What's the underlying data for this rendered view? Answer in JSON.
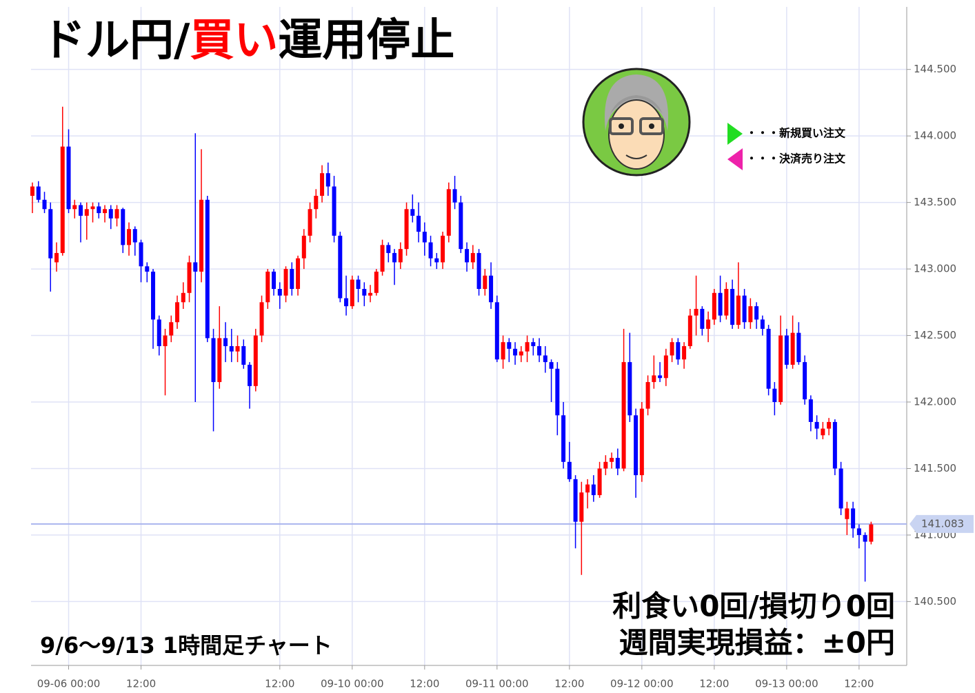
{
  "title_parts": [
    "ドル円/",
    "買い",
    "運用停止"
  ],
  "legend": [
    "・・・新規買い注文",
    "・・・決済売り注文"
  ],
  "period_note": "9/6〜9/13  1時間足チャート",
  "result_lines": [
    "利食い0回/損切り0回",
    "週間実現損益：±0円"
  ],
  "chart_data": {
    "type": "candlestick",
    "up_color": "#ff0000",
    "down_color": "#0000ff",
    "grid": true,
    "ylim": [
      140.02,
      144.97
    ],
    "xlim": [
      -0.23,
      144.9
    ],
    "yticks": [
      {
        "value": 140.5,
        "label": "140.500"
      },
      {
        "value": 141,
        "label": "141.000"
      },
      {
        "value": 141.5,
        "label": "141.500"
      },
      {
        "value": 142,
        "label": "142.000"
      },
      {
        "value": 142.5,
        "label": "142.500"
      },
      {
        "value": 143,
        "label": "143.000"
      },
      {
        "value": 143.5,
        "label": "143.500"
      },
      {
        "value": 144,
        "label": "144.000"
      },
      {
        "value": 144.5,
        "label": "144.500"
      }
    ],
    "xticks": [
      {
        "value": 6,
        "label": "09-06 00:00"
      },
      {
        "value": 18,
        "label": "12:00"
      },
      {
        "value": 41,
        "label": "12:00"
      },
      {
        "value": 53,
        "label": "09-10 00:00"
      },
      {
        "value": 65,
        "label": "12:00"
      },
      {
        "value": 77,
        "label": "09-11 00:00"
      },
      {
        "value": 89,
        "label": "12:00"
      },
      {
        "value": 101,
        "label": "09-12 00:00"
      },
      {
        "value": 113,
        "label": "12:00"
      },
      {
        "value": 125,
        "label": "09-13 00:00"
      },
      {
        "value": 137,
        "label": "12:00"
      }
    ],
    "last_price": {
      "value": 141.083,
      "label": "141.083"
    },
    "open": [
      143.55,
      143.62,
      143.52,
      143.45,
      143.05,
      143.12,
      143.92,
      143.45,
      143.48,
      143.4,
      143.45,
      143.47,
      143.42,
      143.45,
      143.38,
      143.45,
      143.18,
      143.3,
      143.2,
      143.02,
      142.98,
      142.62,
      142.42,
      142.5,
      142.6,
      142.75,
      142.82,
      143.05,
      142.98,
      143.52,
      142.48,
      142.15,
      142.48,
      142.42,
      142.38,
      142.42,
      142.28,
      142.12,
      142.5,
      142.75,
      142.98,
      142.85,
      142.8,
      143.0,
      142.85,
      143.08,
      143.25,
      143.45,
      143.55,
      143.72,
      143.62,
      143.25,
      142.78,
      142.72,
      142.92,
      142.85,
      142.8,
      142.82,
      142.98,
      143.18,
      143.12,
      143.05,
      143.15,
      143.45,
      143.4,
      143.28,
      143.2,
      143.08,
      143.05,
      143.25,
      143.6,
      143.5,
      143.15,
      143.05,
      143.12,
      142.85,
      142.95,
      142.75,
      142.32,
      142.45,
      142.4,
      142.35,
      142.38,
      142.45,
      142.42,
      142.35,
      142.3,
      142.25,
      141.9,
      141.55,
      141.42,
      141.1,
      141.32,
      141.38,
      141.3,
      141.5,
      141.55,
      141.58,
      141.5,
      142.3,
      141.9,
      141.45,
      141.95,
      142.15,
      142.2,
      142.18,
      142.35,
      142.45,
      142.32,
      142.42,
      142.65,
      142.7,
      142.55,
      142.62,
      142.82,
      142.65,
      142.85,
      142.58,
      142.8,
      142.6,
      142.72,
      142.62,
      142.55,
      142.1,
      142.0,
      142.5,
      142.28,
      142.52,
      142.3,
      142.02,
      141.85,
      141.75,
      141.8,
      141.85,
      141.5,
      141.12,
      141.2,
      141.05,
      141.0,
      140.95
    ],
    "high": [
      143.65,
      143.66,
      143.58,
      143.5,
      143.2,
      144.22,
      144.05,
      143.52,
      143.5,
      143.5,
      143.5,
      143.5,
      143.48,
      143.48,
      143.48,
      143.46,
      143.35,
      143.32,
      143.22,
      143.05,
      143.0,
      142.65,
      142.55,
      142.65,
      142.8,
      142.9,
      143.1,
      144.02,
      143.9,
      143.55,
      142.55,
      142.72,
      142.6,
      142.55,
      142.5,
      142.47,
      142.3,
      142.55,
      142.8,
      143.0,
      143.0,
      142.9,
      143.02,
      143.05,
      143.1,
      143.3,
      143.5,
      143.6,
      143.78,
      143.8,
      143.7,
      143.28,
      142.95,
      142.95,
      142.95,
      142.9,
      142.88,
      143.0,
      143.22,
      143.2,
      143.15,
      143.2,
      143.5,
      143.56,
      143.5,
      143.35,
      143.25,
      143.12,
      143.28,
      143.65,
      143.7,
      143.55,
      143.2,
      143.18,
      143.15,
      143.0,
      143.05,
      142.8,
      142.5,
      142.48,
      142.45,
      142.42,
      142.5,
      142.48,
      142.48,
      142.42,
      142.32,
      142.3,
      142.0,
      141.7,
      141.45,
      141.4,
      141.42,
      141.45,
      141.55,
      141.6,
      141.62,
      141.65,
      142.55,
      142.52,
      141.95,
      142.0,
      142.2,
      142.35,
      142.3,
      142.4,
      142.48,
      142.48,
      142.45,
      142.7,
      142.95,
      142.72,
      142.68,
      142.85,
      142.95,
      142.9,
      142.92,
      143.05,
      142.85,
      142.78,
      142.75,
      142.65,
      142.58,
      142.15,
      142.65,
      142.55,
      142.65,
      142.6,
      142.35,
      142.05,
      141.9,
      141.85,
      141.88,
      141.87,
      141.55,
      141.25,
      141.25,
      141.08,
      141.02,
      141.1
    ],
    "low": [
      143.42,
      143.5,
      143.42,
      142.83,
      142.98,
      143.1,
      143.42,
      143.38,
      143.2,
      143.22,
      143.35,
      143.38,
      143.35,
      143.3,
      143.32,
      143.12,
      143.1,
      143.1,
      142.9,
      142.9,
      142.4,
      142.35,
      142.05,
      142.45,
      142.55,
      142.7,
      142.75,
      142.0,
      142.9,
      142.45,
      141.78,
      142.1,
      142.3,
      142.3,
      142.3,
      142.25,
      141.95,
      142.08,
      142.45,
      142.7,
      142.8,
      142.7,
      142.75,
      142.8,
      142.8,
      143.0,
      143.2,
      143.38,
      143.5,
      143.55,
      143.2,
      142.75,
      142.65,
      142.7,
      142.75,
      142.72,
      142.75,
      142.8,
      142.95,
      143.05,
      142.88,
      143.0,
      143.1,
      143.35,
      143.2,
      143.1,
      143.02,
      143.0,
      143.0,
      143.2,
      143.45,
      143.12,
      142.98,
      143.0,
      142.8,
      142.8,
      142.7,
      142.3,
      142.25,
      142.3,
      142.28,
      142.3,
      142.3,
      142.35,
      142.3,
      142.22,
      142.0,
      141.75,
      141.5,
      141.4,
      140.9,
      140.7,
      141.2,
      141.25,
      141.28,
      141.45,
      141.5,
      141.45,
      141.48,
      141.85,
      141.28,
      141.4,
      141.9,
      142.1,
      142.15,
      142.12,
      142.3,
      142.28,
      142.25,
      142.4,
      142.5,
      142.5,
      142.45,
      142.58,
      142.6,
      142.62,
      142.55,
      142.55,
      142.55,
      142.55,
      142.55,
      142.5,
      142.05,
      141.9,
      141.98,
      142.25,
      142.25,
      142.28,
      141.98,
      141.78,
      141.72,
      141.72,
      141.75,
      141.45,
      141.15,
      141.0,
      140.98,
      140.9,
      140.65,
      140.93
    ],
    "close": [
      143.62,
      143.52,
      143.45,
      143.08,
      143.12,
      143.92,
      143.45,
      143.48,
      143.4,
      143.45,
      143.47,
      143.42,
      143.45,
      143.38,
      143.45,
      143.18,
      143.3,
      143.2,
      143.02,
      142.98,
      142.62,
      142.42,
      142.5,
      142.6,
      142.75,
      142.82,
      143.05,
      142.98,
      143.52,
      142.48,
      142.15,
      142.48,
      142.42,
      142.38,
      142.42,
      142.28,
      142.12,
      142.5,
      142.75,
      142.98,
      142.85,
      142.8,
      143.0,
      142.85,
      143.08,
      143.25,
      143.45,
      143.55,
      143.72,
      143.62,
      143.25,
      142.78,
      142.72,
      142.92,
      142.85,
      142.8,
      142.82,
      142.98,
      143.18,
      143.12,
      143.05,
      143.15,
      143.45,
      143.4,
      143.28,
      143.2,
      143.08,
      143.05,
      143.25,
      143.6,
      143.5,
      143.15,
      143.05,
      143.12,
      142.85,
      142.95,
      142.75,
      142.32,
      142.45,
      142.4,
      142.35,
      142.38,
      142.45,
      142.42,
      142.35,
      142.3,
      142.25,
      141.9,
      141.55,
      141.42,
      141.1,
      141.32,
      141.38,
      141.3,
      141.5,
      141.55,
      141.58,
      141.5,
      142.3,
      141.9,
      141.45,
      141.95,
      142.15,
      142.2,
      142.18,
      142.35,
      142.45,
      142.32,
      142.42,
      142.65,
      142.7,
      142.55,
      142.62,
      142.82,
      142.65,
      142.85,
      142.58,
      142.8,
      142.6,
      142.72,
      142.62,
      142.55,
      142.1,
      142.0,
      142.5,
      142.28,
      142.52,
      142.3,
      142.02,
      141.85,
      141.8,
      141.8,
      141.85,
      141.5,
      141.2,
      141.2,
      141.05,
      141.0,
      140.95,
      141.08
    ]
  }
}
